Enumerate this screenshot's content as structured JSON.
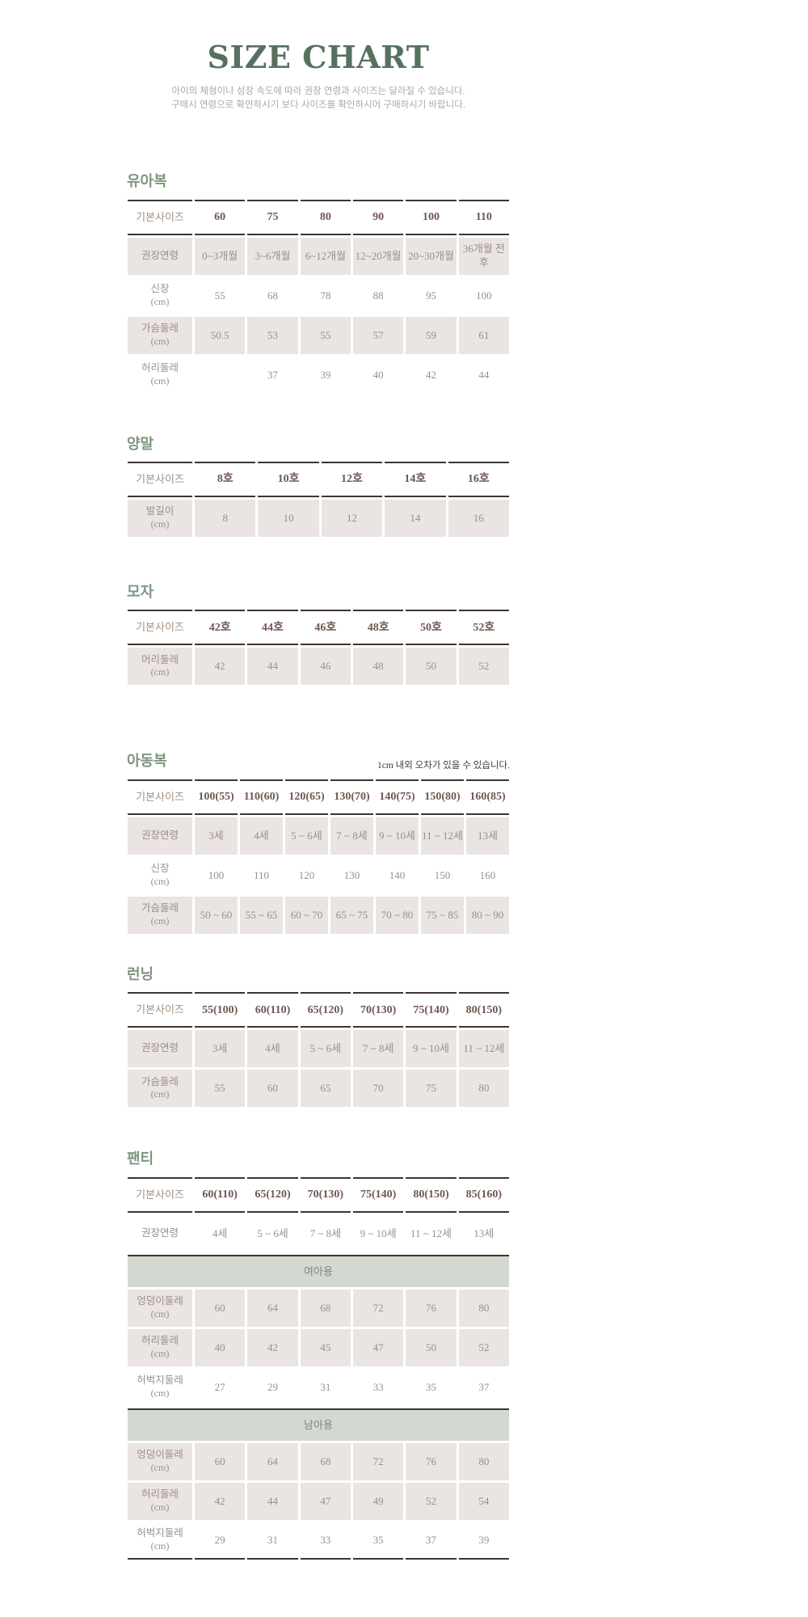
{
  "page": {
    "title": "SIZE CHART",
    "subtitle_line1": "아이의 체형이나 성장 속도에 따라 권장 연령과 사이즈는 달라질 수 있습니다.",
    "subtitle_line2": "구매시 연령으로 확인하시기 보다 사이즈를 확인하시어 구매하시기 바랍니다."
  },
  "colors": {
    "title_green": "#57705F",
    "heading_green": "#7F957F",
    "border_dark": "#3D3531",
    "header_value_text": "#6F5752",
    "cell_text": "#9B8F8A",
    "shaded_row_bg": "#EAE4E3",
    "group_band_bg": "#D3D9D1"
  },
  "sections": [
    {
      "id": "infant-wear",
      "heading": "유아복",
      "note": "",
      "size_label": "기본사이즈",
      "columns": [
        "60",
        "75",
        "80",
        "90",
        "100",
        "110"
      ],
      "rows": [
        {
          "label": "권장연령",
          "sub": "",
          "shaded": true,
          "values": [
            "0~3개월",
            "3~6개월",
            "6~12개월",
            "12~20개월",
            "20~30개월",
            "36개월 전후"
          ]
        },
        {
          "label": "신장",
          "sub": "(cm)",
          "shaded": false,
          "values": [
            "55",
            "68",
            "78",
            "88",
            "95",
            "100"
          ]
        },
        {
          "label": "가슴둘레",
          "sub": "(cm)",
          "shaded": true,
          "values": [
            "50.5",
            "53",
            "55",
            "57",
            "59",
            "61"
          ]
        },
        {
          "label": "허리둘레",
          "sub": "(cm)",
          "shaded": false,
          "values": [
            "",
            "37",
            "39",
            "40",
            "42",
            "44"
          ]
        }
      ],
      "groups": [],
      "bottom_border": false
    },
    {
      "id": "socks",
      "heading": "양말",
      "note": "",
      "size_label": "기본사이즈",
      "columns": [
        "8호",
        "10호",
        "12호",
        "14호",
        "16호"
      ],
      "rows": [
        {
          "label": "발길이",
          "sub": "(cm)",
          "shaded": true,
          "values": [
            "8",
            "10",
            "12",
            "14",
            "16"
          ]
        }
      ],
      "groups": [],
      "bottom_border": false
    },
    {
      "id": "hats",
      "heading": "모자",
      "note": "",
      "size_label": "기본사이즈",
      "columns": [
        "42호",
        "44호",
        "46호",
        "48호",
        "50호",
        "52호"
      ],
      "rows": [
        {
          "label": "머리둘레",
          "sub": "(cm)",
          "shaded": true,
          "values": [
            "42",
            "44",
            "46",
            "48",
            "50",
            "52"
          ]
        }
      ],
      "groups": [],
      "bottom_border": false
    },
    {
      "id": "kids-wear",
      "heading": "아동복",
      "note": "1cm 내외 오차가 있을 수 있습니다.",
      "size_label": "기본사이즈",
      "columns": [
        "100(55)",
        "110(60)",
        "120(65)",
        "130(70)",
        "140(75)",
        "150(80)",
        "160(85)"
      ],
      "rows": [
        {
          "label": "권장연령",
          "sub": "",
          "shaded": true,
          "values": [
            "3세",
            "4세",
            "5 ~ 6세",
            "7 ~ 8세",
            "9 ~ 10세",
            "11 ~ 12세",
            "13세"
          ]
        },
        {
          "label": "신장",
          "sub": "(cm)",
          "shaded": false,
          "values": [
            "100",
            "110",
            "120",
            "130",
            "140",
            "150",
            "160"
          ]
        },
        {
          "label": "가슴둘레",
          "sub": "(cm)",
          "shaded": true,
          "values": [
            "50 ~ 60",
            "55 ~ 65",
            "60 ~ 70",
            "65 ~ 75",
            "70 ~ 80",
            "75 ~ 85",
            "80 ~ 90"
          ]
        }
      ],
      "groups": [],
      "bottom_border": false
    },
    {
      "id": "running",
      "heading": "런닝",
      "note": "",
      "size_label": "기본사이즈",
      "columns": [
        "55(100)",
        "60(110)",
        "65(120)",
        "70(130)",
        "75(140)",
        "80(150)"
      ],
      "rows": [
        {
          "label": "권장연령",
          "sub": "",
          "shaded": true,
          "values": [
            "3세",
            "4세",
            "5 ~ 6세",
            "7 ~ 8세",
            "9 ~ 10세",
            "11 ~ 12세"
          ]
        },
        {
          "label": "가슴둘레",
          "sub": "(cm)",
          "shaded": true,
          "values": [
            "55",
            "60",
            "65",
            "70",
            "75",
            "80"
          ]
        }
      ],
      "groups": [],
      "bottom_border": false
    },
    {
      "id": "panties",
      "heading": "팬티",
      "note": "",
      "size_label": "기본사이즈",
      "columns": [
        "60(110)",
        "65(120)",
        "70(130)",
        "75(140)",
        "80(150)",
        "85(160)"
      ],
      "rows": [
        {
          "label": "권장연령",
          "sub": "",
          "shaded": false,
          "values": [
            "4세",
            "5 ~ 6세",
            "7 ~ 8세",
            "9 ~ 10세",
            "11 ~ 12세",
            "13세"
          ]
        }
      ],
      "groups": [
        {
          "band": "여아용",
          "rows": [
            {
              "label": "엉덩이둘레",
              "sub": "(cm)",
              "shaded": true,
              "values": [
                "60",
                "64",
                "68",
                "72",
                "76",
                "80"
              ]
            },
            {
              "label": "허리둘레",
              "sub": "(cm)",
              "shaded": true,
              "values": [
                "40",
                "42",
                "45",
                "47",
                "50",
                "52"
              ]
            },
            {
              "label": "허벅지둘레",
              "sub": "(cm)",
              "shaded": false,
              "values": [
                "27",
                "29",
                "31",
                "33",
                "35",
                "37"
              ]
            }
          ]
        },
        {
          "band": "남아용",
          "rows": [
            {
              "label": "엉덩이둘레",
              "sub": "(cm)",
              "shaded": true,
              "values": [
                "60",
                "64",
                "68",
                "72",
                "76",
                "80"
              ]
            },
            {
              "label": "허리둘레",
              "sub": "(cm)",
              "shaded": true,
              "values": [
                "42",
                "44",
                "47",
                "49",
                "52",
                "54"
              ]
            },
            {
              "label": "허벅지둘레",
              "sub": "(cm)",
              "shaded": false,
              "values": [
                "29",
                "31",
                "33",
                "35",
                "37",
                "39"
              ]
            }
          ]
        }
      ],
      "bottom_border": true
    }
  ]
}
